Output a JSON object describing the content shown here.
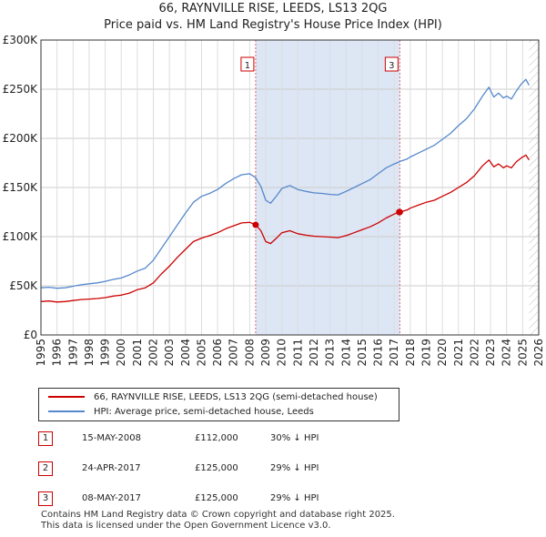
{
  "chart_data": {
    "type": "line",
    "title": "66, RAYNVILLE RISE, LEEDS, LS13 2QG",
    "subtitle": "Price paid vs. HM Land Registry's House Price Index (HPI)",
    "xlim": [
      1995,
      2026
    ],
    "ylim": [
      0,
      300000
    ],
    "x_ticks": [
      "1995",
      "1996",
      "1997",
      "1998",
      "1999",
      "2000",
      "2001",
      "2002",
      "2003",
      "2004",
      "2005",
      "2006",
      "2007",
      "2008",
      "2009",
      "2010",
      "2011",
      "2012",
      "2013",
      "2014",
      "2015",
      "2016",
      "2017",
      "2018",
      "2019",
      "2020",
      "2021",
      "2022",
      "2023",
      "2024",
      "2025",
      "2026"
    ],
    "y_ticks": [
      {
        "value": 0,
        "label": "£0"
      },
      {
        "value": 50000,
        "label": "£50K"
      },
      {
        "value": 100000,
        "label": "£100K"
      },
      {
        "value": 150000,
        "label": "£150K"
      },
      {
        "value": 200000,
        "label": "£200K"
      },
      {
        "value": 250000,
        "label": "£250K"
      },
      {
        "value": 300000,
        "label": "£300K"
      }
    ],
    "grid": true,
    "colors": {
      "property": "#cc0000",
      "hpi": "#5588cc",
      "band": "#dde6f5",
      "vline": "#e06666"
    },
    "series": [
      {
        "name": "66, RAYNVILLE RISE, LEEDS, LS13 2QG (semi-detached house)",
        "color": "#cc0000",
        "points": [
          [
            1995.0,
            34000
          ],
          [
            1995.5,
            34500
          ],
          [
            1996.0,
            33500
          ],
          [
            1996.5,
            34000
          ],
          [
            1997.0,
            35000
          ],
          [
            1997.5,
            36000
          ],
          [
            1998.0,
            36500
          ],
          [
            1998.5,
            37000
          ],
          [
            1999.0,
            38000
          ],
          [
            1999.5,
            39500
          ],
          [
            2000.0,
            40500
          ],
          [
            2000.5,
            42500
          ],
          [
            2001.0,
            46000
          ],
          [
            2001.5,
            48000
          ],
          [
            2002.0,
            53000
          ],
          [
            2002.5,
            62000
          ],
          [
            2003.0,
            70000
          ],
          [
            2003.5,
            79000
          ],
          [
            2004.0,
            87000
          ],
          [
            2004.5,
            95000
          ],
          [
            2005.0,
            98500
          ],
          [
            2005.5,
            101000
          ],
          [
            2006.0,
            104000
          ],
          [
            2006.5,
            108000
          ],
          [
            2007.0,
            111000
          ],
          [
            2007.5,
            114000
          ],
          [
            2008.0,
            114500
          ],
          [
            2008.37,
            112000
          ],
          [
            2008.7,
            106000
          ],
          [
            2009.0,
            95000
          ],
          [
            2009.3,
            93000
          ],
          [
            2009.7,
            99000
          ],
          [
            2010.0,
            104000
          ],
          [
            2010.5,
            106000
          ],
          [
            2011.0,
            103000
          ],
          [
            2011.5,
            101500
          ],
          [
            2012.0,
            100500
          ],
          [
            2012.5,
            100000
          ],
          [
            2013.0,
            99500
          ],
          [
            2013.5,
            99000
          ],
          [
            2014.0,
            101000
          ],
          [
            2014.5,
            104000
          ],
          [
            2015.0,
            107000
          ],
          [
            2015.5,
            110000
          ],
          [
            2016.0,
            114000
          ],
          [
            2016.5,
            119000
          ],
          [
            2017.0,
            123000
          ],
          [
            2017.31,
            125000
          ],
          [
            2017.35,
            125000
          ],
          [
            2017.8,
            127000
          ],
          [
            2018.0,
            129000
          ],
          [
            2018.5,
            132000
          ],
          [
            2019.0,
            135000
          ],
          [
            2019.5,
            137000
          ],
          [
            2020.0,
            141000
          ],
          [
            2020.5,
            145000
          ],
          [
            2021.0,
            150000
          ],
          [
            2021.5,
            155000
          ],
          [
            2022.0,
            162000
          ],
          [
            2022.5,
            172000
          ],
          [
            2022.9,
            178000
          ],
          [
            2023.2,
            171000
          ],
          [
            2023.5,
            174000
          ],
          [
            2023.8,
            170000
          ],
          [
            2024.0,
            172000
          ],
          [
            2024.3,
            170000
          ],
          [
            2024.6,
            176000
          ],
          [
            2024.9,
            180000
          ],
          [
            2025.2,
            183000
          ],
          [
            2025.4,
            178000
          ]
        ]
      },
      {
        "name": "HPI: Average price, semi-detached house, Leeds",
        "color": "#5588cc",
        "points": [
          [
            1995.0,
            48000
          ],
          [
            1995.5,
            48500
          ],
          [
            1996.0,
            47500
          ],
          [
            1996.5,
            48000
          ],
          [
            1997.0,
            49500
          ],
          [
            1997.5,
            51000
          ],
          [
            1998.0,
            52000
          ],
          [
            1998.5,
            53000
          ],
          [
            1999.0,
            54500
          ],
          [
            1999.5,
            56500
          ],
          [
            2000.0,
            58000
          ],
          [
            2000.5,
            61000
          ],
          [
            2001.0,
            65000
          ],
          [
            2001.5,
            68000
          ],
          [
            2002.0,
            76000
          ],
          [
            2002.5,
            88000
          ],
          [
            2003.0,
            100000
          ],
          [
            2003.5,
            112000
          ],
          [
            2004.0,
            124000
          ],
          [
            2004.5,
            135000
          ],
          [
            2005.0,
            141000
          ],
          [
            2005.5,
            144000
          ],
          [
            2006.0,
            148000
          ],
          [
            2006.5,
            154000
          ],
          [
            2007.0,
            159000
          ],
          [
            2007.5,
            163000
          ],
          [
            2008.0,
            164000
          ],
          [
            2008.37,
            160000
          ],
          [
            2008.7,
            151000
          ],
          [
            2009.0,
            137000
          ],
          [
            2009.3,
            134000
          ],
          [
            2009.7,
            142000
          ],
          [
            2010.0,
            149000
          ],
          [
            2010.5,
            152000
          ],
          [
            2011.0,
            148000
          ],
          [
            2011.5,
            146000
          ],
          [
            2012.0,
            144500
          ],
          [
            2012.5,
            144000
          ],
          [
            2013.0,
            143000
          ],
          [
            2013.5,
            142500
          ],
          [
            2014.0,
            146000
          ],
          [
            2014.5,
            150000
          ],
          [
            2015.0,
            154000
          ],
          [
            2015.5,
            158000
          ],
          [
            2016.0,
            164000
          ],
          [
            2016.5,
            170000
          ],
          [
            2017.0,
            174000
          ],
          [
            2017.31,
            176000
          ],
          [
            2017.35,
            176500
          ],
          [
            2017.8,
            179000
          ],
          [
            2018.0,
            181000
          ],
          [
            2018.5,
            185000
          ],
          [
            2019.0,
            189000
          ],
          [
            2019.5,
            193000
          ],
          [
            2020.0,
            199000
          ],
          [
            2020.5,
            205000
          ],
          [
            2021.0,
            213000
          ],
          [
            2021.5,
            220000
          ],
          [
            2022.0,
            230000
          ],
          [
            2022.5,
            243000
          ],
          [
            2022.9,
            252000
          ],
          [
            2023.2,
            242000
          ],
          [
            2023.5,
            246000
          ],
          [
            2023.8,
            241000
          ],
          [
            2024.0,
            243000
          ],
          [
            2024.3,
            240000
          ],
          [
            2024.6,
            248000
          ],
          [
            2024.9,
            255000
          ],
          [
            2025.2,
            260000
          ],
          [
            2025.4,
            254000
          ]
        ]
      }
    ],
    "sales": [
      {
        "id": "1",
        "x": 2008.37,
        "y": 112000
      },
      {
        "id": "2",
        "x": 2017.31,
        "y": 125000
      },
      {
        "id": "3",
        "x": 2017.35,
        "y": 125000
      }
    ],
    "markers": [
      {
        "label": "1",
        "x": 2008.37
      },
      {
        "label": "3",
        "x": 2017.35
      }
    ],
    "shaded_band": [
      2008.37,
      2017.35
    ],
    "future_band": [
      2025.4,
      2026
    ],
    "legend": [
      {
        "label": "66, RAYNVILLE RISE, LEEDS, LS13 2QG (semi-detached house)",
        "color": "#cc0000"
      },
      {
        "label": "HPI: Average price, semi-detached house, Leeds",
        "color": "#5588cc"
      }
    ]
  },
  "transactions": [
    {
      "num": "1",
      "date": "15-MAY-2008",
      "price": "£112,000",
      "hpi": "30% ↓ HPI"
    },
    {
      "num": "2",
      "date": "24-APR-2017",
      "price": "£125,000",
      "hpi": "29% ↓ HPI"
    },
    {
      "num": "3",
      "date": "08-MAY-2017",
      "price": "£125,000",
      "hpi": "29% ↓ HPI"
    }
  ],
  "footer": {
    "line1": "Contains HM Land Registry data © Crown copyright and database right 2025.",
    "line2": "This data is licensed under the Open Government Licence v3.0."
  }
}
